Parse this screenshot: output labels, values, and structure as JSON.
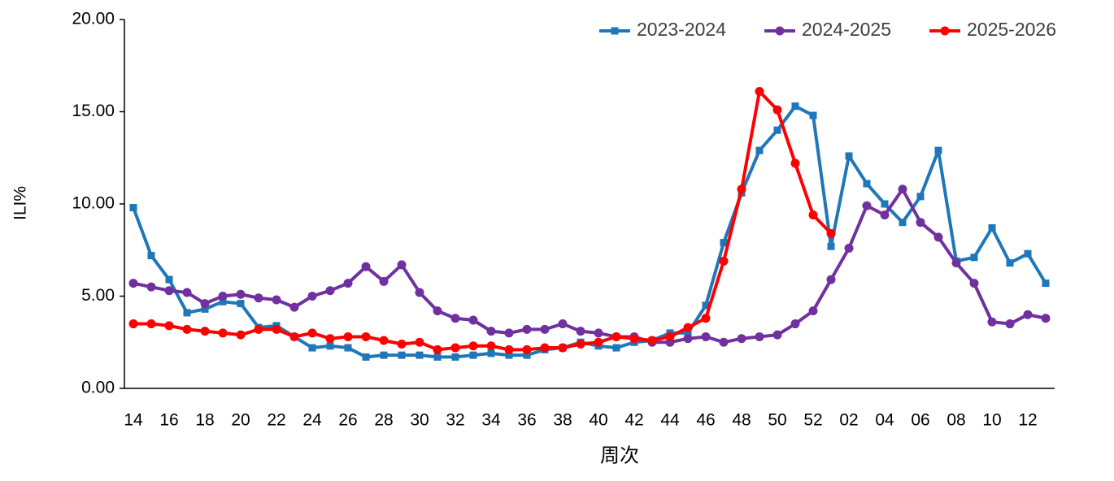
{
  "chart_data": {
    "type": "line",
    "x_label": "周次",
    "y_label": "ILI%",
    "categories": [
      "14",
      null,
      "16",
      null,
      "18",
      null,
      "20",
      null,
      "22",
      null,
      "24",
      null,
      "26",
      null,
      "28",
      null,
      "30",
      null,
      "32",
      null,
      "34",
      null,
      "36",
      null,
      "38",
      null,
      "40",
      null,
      "42",
      null,
      "44",
      null,
      "46",
      null,
      "48",
      null,
      "50",
      null,
      "52",
      null,
      "02",
      null,
      "04",
      null,
      "06",
      null,
      "08",
      null,
      "10",
      null,
      "12",
      null
    ],
    "series": [
      {
        "name": "2023-2024",
        "color": "#1f77b9",
        "marker": "square",
        "values": [
          9.8,
          7.2,
          5.9,
          4.1,
          4.3,
          4.7,
          4.6,
          3.3,
          3.4,
          2.8,
          2.2,
          2.3,
          2.2,
          1.7,
          1.8,
          1.8,
          1.8,
          1.7,
          1.7,
          1.8,
          1.9,
          1.8,
          1.8,
          2.1,
          2.2,
          2.5,
          2.3,
          2.2,
          2.5,
          2.6,
          3.0,
          3.0,
          4.5,
          7.9,
          10.6,
          12.9,
          14.0,
          15.3,
          14.8,
          7.7,
          12.6,
          11.1,
          10.0,
          9.0,
          10.4,
          12.9,
          6.9,
          7.1,
          8.7,
          6.8,
          7.3,
          5.7
        ]
      },
      {
        "name": "2024-2025",
        "color": "#7030a0",
        "marker": "circle",
        "values": [
          5.7,
          5.5,
          5.3,
          5.2,
          4.6,
          5.0,
          5.1,
          4.9,
          4.8,
          4.4,
          5.0,
          5.3,
          5.7,
          6.6,
          5.8,
          6.7,
          5.2,
          4.2,
          3.8,
          3.7,
          3.1,
          3.0,
          3.2,
          3.2,
          3.5,
          3.1,
          3.0,
          2.8,
          2.8,
          2.5,
          2.5,
          2.7,
          2.8,
          2.5,
          2.7,
          2.8,
          2.9,
          3.5,
          4.2,
          5.9,
          7.6,
          9.9,
          9.4,
          10.8,
          9.0,
          8.2,
          6.8,
          5.7,
          3.6,
          3.5,
          4.0,
          3.8
        ]
      },
      {
        "name": "2025-2026",
        "color": "#ff0000",
        "marker": "circle",
        "values": [
          3.5,
          3.5,
          3.4,
          3.2,
          3.1,
          3.0,
          2.9,
          3.2,
          3.2,
          2.8,
          3.0,
          2.7,
          2.8,
          2.8,
          2.6,
          2.4,
          2.5,
          2.1,
          2.2,
          2.3,
          2.3,
          2.1,
          2.1,
          2.2,
          2.2,
          2.4,
          2.5,
          2.8,
          2.7,
          2.6,
          2.8,
          3.3,
          3.8,
          6.9,
          10.8,
          16.1,
          15.1,
          12.2,
          9.4,
          8.4,
          null,
          null,
          null,
          null,
          null,
          null,
          null,
          null,
          null,
          null,
          null,
          null
        ]
      }
    ],
    "ylim": [
      0,
      20
    ],
    "yticks": [
      {
        "value": 0,
        "label": "0.00"
      },
      {
        "value": 5,
        "label": "5.00"
      },
      {
        "value": 10,
        "label": "10.00"
      },
      {
        "value": 15,
        "label": "15.00"
      },
      {
        "value": 20,
        "label": "20.00"
      }
    ],
    "grid": false,
    "legend": "top-right"
  }
}
